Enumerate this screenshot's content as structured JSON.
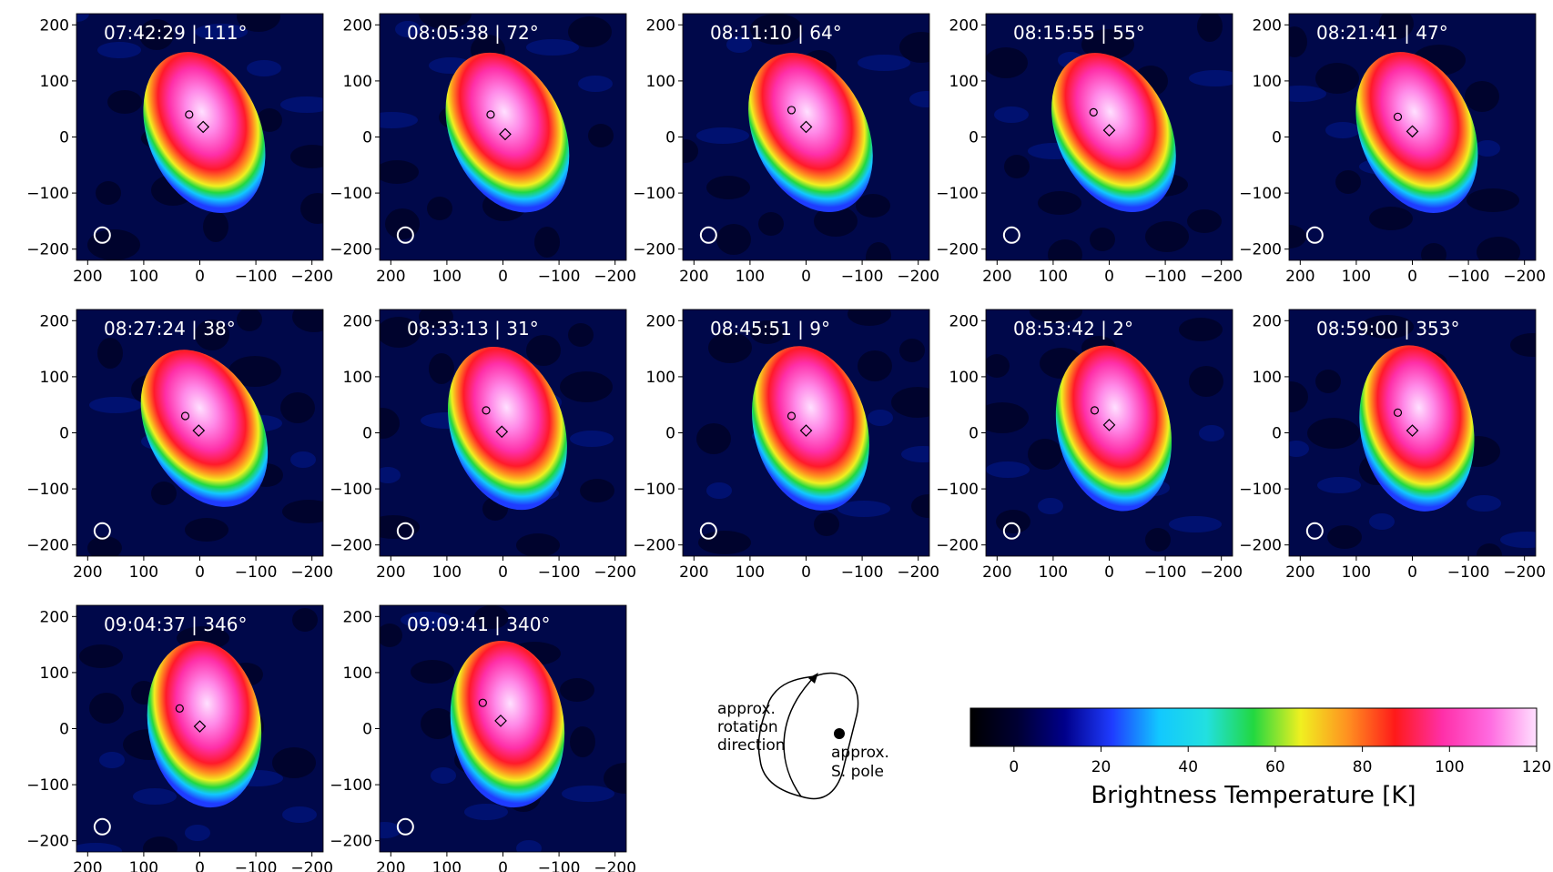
{
  "chart_data": {
    "type": "heatmap",
    "panel_axes": {
      "xlim": [
        220,
        -220
      ],
      "ylim": [
        -220,
        220
      ],
      "x_ticks": [
        200,
        100,
        0,
        -100,
        -200
      ],
      "y_ticks": [
        200,
        100,
        0,
        -100,
        -200
      ],
      "x_tick_labels": [
        "200",
        "100",
        "0",
        "−100",
        "−200"
      ],
      "y_tick_labels": [
        "200",
        "100",
        "0",
        "−100",
        "−200"
      ]
    },
    "beam_ellipse": {
      "x": 174,
      "y": -175,
      "rx": 14,
      "ry": 14
    },
    "panels": [
      {
        "label": "07:42:29 | 111°",
        "circle": [
          19,
          40
        ],
        "diamond": [
          -6,
          18
        ],
        "tilt": -22
      },
      {
        "label": "08:05:38 | 72°",
        "circle": [
          22,
          40
        ],
        "diamond": [
          -4,
          5
        ],
        "tilt": -24
      },
      {
        "label": "08:11:10 | 64°",
        "circle": [
          26,
          48
        ],
        "diamond": [
          0,
          18
        ],
        "tilt": -25
      },
      {
        "label": "08:15:55 | 55°",
        "circle": [
          28,
          44
        ],
        "diamond": [
          0,
          12
        ],
        "tilt": -25
      },
      {
        "label": "08:21:41 | 47°",
        "circle": [
          26,
          36
        ],
        "diamond": [
          0,
          10
        ],
        "tilt": -22
      },
      {
        "label": "08:27:24 | 38°",
        "circle": [
          26,
          30
        ],
        "diamond": [
          2,
          4
        ],
        "tilt": -28
      },
      {
        "label": "08:33:13 | 31°",
        "circle": [
          30,
          40
        ],
        "diamond": [
          2,
          2
        ],
        "tilt": -18
      },
      {
        "label": "08:45:51 | 9°",
        "circle": [
          26,
          30
        ],
        "diamond": [
          0,
          4
        ],
        "tilt": -15
      },
      {
        "label": "08:53:42 | 2°",
        "circle": [
          26,
          40
        ],
        "diamond": [
          0,
          14
        ],
        "tilt": -12
      },
      {
        "label": "08:59:00 | 353°",
        "circle": [
          26,
          36
        ],
        "diamond": [
          0,
          4
        ],
        "tilt": -10
      },
      {
        "label": "09:04:37 | 346°",
        "circle": [
          36,
          36
        ],
        "diamond": [
          0,
          4
        ],
        "tilt": -8
      },
      {
        "label": "09:09:41 | 340°",
        "circle": [
          36,
          46
        ],
        "diamond": [
          4,
          14
        ],
        "tilt": -8
      }
    ],
    "colorbar": {
      "label": "Brightness Temperature [K]",
      "range": [
        -10,
        120
      ],
      "ticks": [
        0,
        20,
        40,
        60,
        80,
        100,
        120
      ],
      "colors": [
        "#000000",
        "#000033",
        "#00008a",
        "#1f3cff",
        "#12c8ff",
        "#22e0e0",
        "#22d840",
        "#f0f020",
        "#ff9020",
        "#ff1a1a",
        "#ff2fa8",
        "#ff6ae0",
        "#ffe0ff"
      ]
    },
    "schematic": {
      "rotation_label": [
        "approx.",
        "rotation",
        "direction"
      ],
      "pole_label": [
        "approx.",
        "S. pole"
      ]
    }
  }
}
